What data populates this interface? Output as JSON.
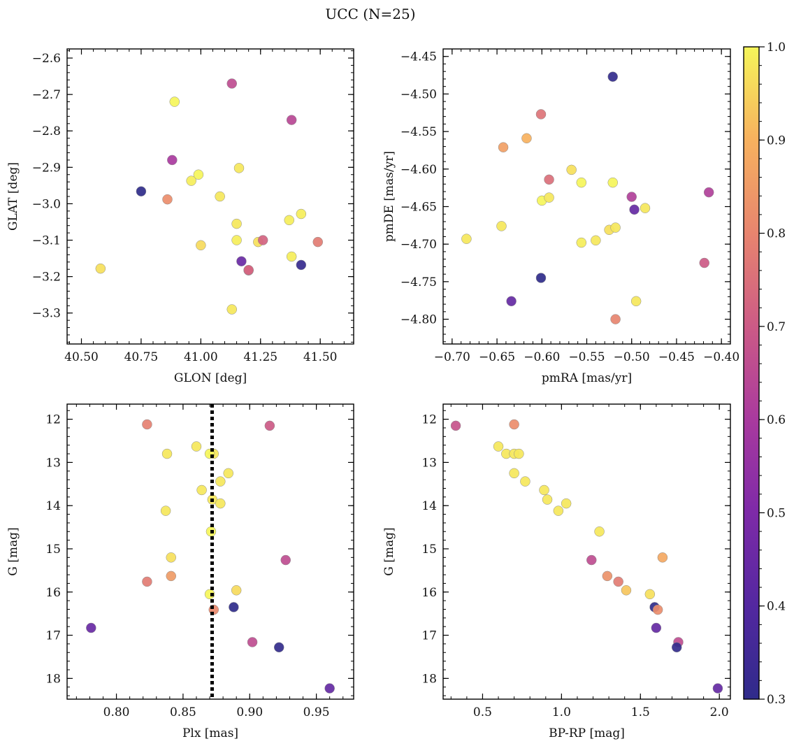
{
  "figure": {
    "title": "UCC (N=25)",
    "colorbar": {
      "min": 0.3,
      "max": 1.0,
      "ticks": [
        "0.3",
        "0.4",
        "0.5",
        "0.6",
        "0.7",
        "0.8",
        "0.9",
        "1.0"
      ],
      "tick_values": [
        0.3,
        0.4,
        0.5,
        0.6,
        0.7,
        0.8,
        0.9,
        1.0
      ],
      "colormap": "plasma"
    }
  },
  "chart_data": [
    {
      "type": "scatter",
      "panel": "top-left",
      "xlabel": "GLON [deg]",
      "ylabel": "GLAT [deg]",
      "xlim": [
        40.44,
        41.64
      ],
      "ylim": [
        -3.385,
        -2.575
      ],
      "y_inverted": false,
      "xticks": [
        40.5,
        40.75,
        41.0,
        41.25,
        41.5
      ],
      "xtick_labels": [
        "40.50",
        "40.75",
        "41.00",
        "41.25",
        "41.50"
      ],
      "yticks": [
        -3.3,
        -3.2,
        -3.1,
        -3.0,
        -2.9,
        -2.8,
        -2.7,
        -2.6
      ],
      "ytick_labels": [
        "−3.3",
        "−3.2",
        "−3.1",
        "−3.0",
        "−2.9",
        "−2.8",
        "−2.7",
        "−2.6"
      ],
      "points": [
        {
          "x": 40.89,
          "y": -2.72,
          "c": 1.0
        },
        {
          "x": 41.13,
          "y": -2.67,
          "c": 0.66
        },
        {
          "x": 41.38,
          "y": -2.77,
          "c": 0.64
        },
        {
          "x": 40.88,
          "y": -2.88,
          "c": 0.6
        },
        {
          "x": 40.99,
          "y": -2.92,
          "c": 1.0
        },
        {
          "x": 40.96,
          "y": -2.937,
          "c": 0.99
        },
        {
          "x": 41.16,
          "y": -2.902,
          "c": 0.98
        },
        {
          "x": 40.75,
          "y": -2.966,
          "c": 0.3
        },
        {
          "x": 40.86,
          "y": -2.988,
          "c": 0.82
        },
        {
          "x": 41.08,
          "y": -2.98,
          "c": 0.98
        },
        {
          "x": 41.15,
          "y": -3.055,
          "c": 0.98
        },
        {
          "x": 41.37,
          "y": -3.045,
          "c": 0.99
        },
        {
          "x": 41.42,
          "y": -3.028,
          "c": 0.99
        },
        {
          "x": 41.15,
          "y": -3.1,
          "c": 0.99
        },
        {
          "x": 41.24,
          "y": -3.105,
          "c": 0.97
        },
        {
          "x": 41.26,
          "y": -3.1,
          "c": 0.72
        },
        {
          "x": 41.49,
          "y": -3.105,
          "c": 0.78
        },
        {
          "x": 41.0,
          "y": -3.114,
          "c": 0.96
        },
        {
          "x": 40.58,
          "y": -3.178,
          "c": 0.97
        },
        {
          "x": 41.17,
          "y": -3.158,
          "c": 0.45
        },
        {
          "x": 41.2,
          "y": -3.183,
          "c": 0.68
        },
        {
          "x": 41.38,
          "y": -3.145,
          "c": 0.99
        },
        {
          "x": 41.42,
          "y": -3.168,
          "c": 0.32
        },
        {
          "x": 41.13,
          "y": -3.29,
          "c": 0.98
        },
        {
          "x": 41.2,
          "y": -3.182,
          "c": 0.73
        }
      ]
    },
    {
      "type": "scatter",
      "panel": "top-right",
      "xlabel": "pmRA [mas/yr]",
      "ylabel": "pmDE [mas/yr]",
      "xlim": [
        -0.71,
        -0.39
      ],
      "ylim": [
        -4.833,
        -4.44
      ],
      "y_inverted": false,
      "xticks": [
        -0.7,
        -0.65,
        -0.6,
        -0.55,
        -0.5,
        -0.45,
        -0.4
      ],
      "xtick_labels": [
        "−0.70",
        "−0.65",
        "−0.60",
        "−0.55",
        "−0.50",
        "−0.45",
        "−0.40"
      ],
      "yticks": [
        -4.8,
        -4.75,
        -4.7,
        -4.65,
        -4.6,
        -4.55,
        -4.5,
        -4.45
      ],
      "ytick_labels": [
        "−4.80",
        "−4.75",
        "−4.70",
        "−4.65",
        "−4.60",
        "−4.55",
        "−4.50",
        "−4.45"
      ],
      "points": [
        {
          "x": -0.521,
          "y": -4.477,
          "c": 0.31
        },
        {
          "x": -0.601,
          "y": -4.527,
          "c": 0.76
        },
        {
          "x": -0.617,
          "y": -4.559,
          "c": 0.9
        },
        {
          "x": -0.643,
          "y": -4.571,
          "c": 0.86
        },
        {
          "x": -0.567,
          "y": -4.601,
          "c": 0.97
        },
        {
          "x": -0.592,
          "y": -4.614,
          "c": 0.75
        },
        {
          "x": -0.556,
          "y": -4.618,
          "c": 1.0
        },
        {
          "x": -0.521,
          "y": -4.618,
          "c": 1.0
        },
        {
          "x": -0.5,
          "y": -4.637,
          "c": 0.62
        },
        {
          "x": -0.414,
          "y": -4.631,
          "c": 0.62
        },
        {
          "x": -0.6,
          "y": -4.642,
          "c": 1.0
        },
        {
          "x": -0.592,
          "y": -4.638,
          "c": 0.98
        },
        {
          "x": -0.497,
          "y": -4.654,
          "c": 0.44
        },
        {
          "x": -0.485,
          "y": -4.652,
          "c": 0.98
        },
        {
          "x": -0.645,
          "y": -4.676,
          "c": 0.98
        },
        {
          "x": -0.525,
          "y": -4.681,
          "c": 0.97
        },
        {
          "x": -0.518,
          "y": -4.678,
          "c": 0.98
        },
        {
          "x": -0.684,
          "y": -4.693,
          "c": 0.98
        },
        {
          "x": -0.556,
          "y": -4.698,
          "c": 0.99
        },
        {
          "x": -0.54,
          "y": -4.695,
          "c": 0.98
        },
        {
          "x": -0.419,
          "y": -4.725,
          "c": 0.7
        },
        {
          "x": -0.601,
          "y": -4.745,
          "c": 0.3
        },
        {
          "x": -0.634,
          "y": -4.776,
          "c": 0.44
        },
        {
          "x": -0.495,
          "y": -4.776,
          "c": 0.98
        },
        {
          "x": -0.518,
          "y": -4.8,
          "c": 0.8
        }
      ]
    },
    {
      "type": "scatter",
      "panel": "bottom-left",
      "xlabel": "Plx [mas]",
      "ylabel": "G [mag]",
      "xlim": [
        0.763,
        0.978
      ],
      "ylim": [
        18.48,
        11.65
      ],
      "y_inverted": true,
      "xticks": [
        0.8,
        0.85,
        0.9,
        0.95
      ],
      "xtick_labels": [
        "0.80",
        "0.85",
        "0.90",
        "0.95"
      ],
      "yticks": [
        12,
        13,
        14,
        15,
        16,
        17,
        18
      ],
      "ytick_labels": [
        "12",
        "13",
        "14",
        "15",
        "16",
        "17",
        "18"
      ],
      "vline": {
        "x": 0.8718,
        "style": "dotted",
        "color": "#000000"
      },
      "points": [
        {
          "x": 0.823,
          "y": 12.12,
          "c": 0.79
        },
        {
          "x": 0.915,
          "y": 12.15,
          "c": 0.7
        },
        {
          "x": 0.86,
          "y": 12.63,
          "c": 0.98
        },
        {
          "x": 0.838,
          "y": 12.8,
          "c": 0.98
        },
        {
          "x": 0.873,
          "y": 12.8,
          "c": 0.98
        },
        {
          "x": 0.87,
          "y": 12.8,
          "c": 1.0
        },
        {
          "x": 0.884,
          "y": 13.25,
          "c": 0.98
        },
        {
          "x": 0.878,
          "y": 13.44,
          "c": 0.98
        },
        {
          "x": 0.864,
          "y": 13.64,
          "c": 0.98
        },
        {
          "x": 0.872,
          "y": 13.86,
          "c": 0.98
        },
        {
          "x": 0.878,
          "y": 13.95,
          "c": 0.98
        },
        {
          "x": 0.837,
          "y": 14.12,
          "c": 0.98
        },
        {
          "x": 0.871,
          "y": 14.6,
          "c": 1.0
        },
        {
          "x": 0.841,
          "y": 15.2,
          "c": 0.97
        },
        {
          "x": 0.927,
          "y": 15.26,
          "c": 0.66
        },
        {
          "x": 0.841,
          "y": 15.63,
          "c": 0.85
        },
        {
          "x": 0.823,
          "y": 15.76,
          "c": 0.78
        },
        {
          "x": 0.89,
          "y": 15.96,
          "c": 0.96
        },
        {
          "x": 0.87,
          "y": 16.05,
          "c": 1.0
        },
        {
          "x": 0.888,
          "y": 16.35,
          "c": 0.3
        },
        {
          "x": 0.873,
          "y": 16.41,
          "c": 0.81
        },
        {
          "x": 0.781,
          "y": 16.83,
          "c": 0.45
        },
        {
          "x": 0.902,
          "y": 17.16,
          "c": 0.66
        },
        {
          "x": 0.922,
          "y": 17.28,
          "c": 0.31
        },
        {
          "x": 0.96,
          "y": 18.23,
          "c": 0.44
        }
      ]
    },
    {
      "type": "scatter",
      "panel": "bottom-right",
      "xlabel": "BP-RP [mag]",
      "ylabel": "G [mag]",
      "xlim": [
        0.25,
        2.07
      ],
      "ylim": [
        18.48,
        11.65
      ],
      "y_inverted": true,
      "xticks": [
        0.5,
        1.0,
        1.5,
        2.0
      ],
      "xtick_labels": [
        "0.5",
        "1.0",
        "1.5",
        "2.0"
      ],
      "yticks": [
        12,
        13,
        14,
        15,
        16,
        17,
        18
      ],
      "ytick_labels": [
        "12",
        "13",
        "14",
        "15",
        "16",
        "17",
        "18"
      ],
      "points": [
        {
          "x": 0.33,
          "y": 12.15,
          "c": 0.68
        },
        {
          "x": 0.7,
          "y": 12.12,
          "c": 0.82
        },
        {
          "x": 0.6,
          "y": 12.63,
          "c": 0.98
        },
        {
          "x": 0.65,
          "y": 12.8,
          "c": 0.98
        },
        {
          "x": 0.7,
          "y": 12.8,
          "c": 0.98
        },
        {
          "x": 0.73,
          "y": 12.8,
          "c": 0.98
        },
        {
          "x": 0.7,
          "y": 13.25,
          "c": 0.98
        },
        {
          "x": 0.77,
          "y": 13.44,
          "c": 0.98
        },
        {
          "x": 0.89,
          "y": 13.64,
          "c": 0.98
        },
        {
          "x": 0.91,
          "y": 13.86,
          "c": 0.98
        },
        {
          "x": 1.03,
          "y": 13.95,
          "c": 0.98
        },
        {
          "x": 0.98,
          "y": 14.12,
          "c": 0.98
        },
        {
          "x": 1.24,
          "y": 14.6,
          "c": 0.98
        },
        {
          "x": 1.19,
          "y": 15.26,
          "c": 0.66
        },
        {
          "x": 1.64,
          "y": 15.2,
          "c": 0.88
        },
        {
          "x": 1.29,
          "y": 15.63,
          "c": 0.83
        },
        {
          "x": 1.36,
          "y": 15.76,
          "c": 0.78
        },
        {
          "x": 1.41,
          "y": 15.96,
          "c": 0.93
        },
        {
          "x": 1.56,
          "y": 16.05,
          "c": 0.97
        },
        {
          "x": 1.59,
          "y": 16.35,
          "c": 0.3
        },
        {
          "x": 1.61,
          "y": 16.41,
          "c": 0.82
        },
        {
          "x": 1.6,
          "y": 16.83,
          "c": 0.44
        },
        {
          "x": 1.74,
          "y": 17.16,
          "c": 0.66
        },
        {
          "x": 1.73,
          "y": 17.28,
          "c": 0.31
        },
        {
          "x": 1.99,
          "y": 18.23,
          "c": 0.44
        }
      ]
    }
  ]
}
